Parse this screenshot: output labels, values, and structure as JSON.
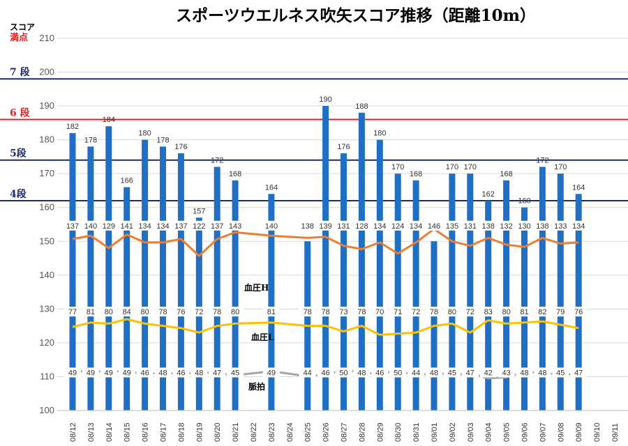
{
  "chart_data": {
    "type": "bar",
    "title": "スポーツウエルネス吹矢スコア推移（距離10m）",
    "ylabel": "スコア",
    "ylim": [
      100,
      210
    ],
    "yticks": [
      100,
      110,
      120,
      130,
      140,
      150,
      160,
      170,
      180,
      190,
      200,
      210
    ],
    "categories": [
      "08/12",
      "08/13",
      "08/14",
      "08/15",
      "08/16",
      "08/17",
      "08/18",
      "08/19",
      "08/20",
      "08/21",
      "08/22",
      "08/23",
      "08/24",
      "08/25",
      "08/26",
      "08/27",
      "08/28",
      "08/29",
      "08/30",
      "08/31",
      "09/01",
      "09/02",
      "09/03",
      "09/04",
      "09/05",
      "09/06",
      "09/07",
      "09/08",
      "09/09",
      "09/10",
      "09/11"
    ],
    "series": [
      {
        "kind": "bar",
        "color": "#1f6fc5",
        "values": [
          182,
          178,
          184,
          166,
          180,
          178,
          176,
          157,
          172,
          168,
          null,
          164,
          null,
          null,
          190,
          176,
          188,
          180,
          170,
          168,
          null,
          170,
          170,
          162,
          168,
          160,
          172,
          170,
          164,
          null,
          null
        ]
      },
      {
        "kind": "line",
        "name": "血圧H",
        "color": "#ed7d31",
        "values": [
          137,
          140,
          129,
          141,
          134,
          134,
          137,
          122,
          137,
          143,
          null,
          140,
          null,
          138,
          139,
          131,
          128,
          134,
          124,
          134,
          146,
          135,
          131,
          138,
          132,
          130,
          138,
          133,
          134,
          null,
          null
        ]
      },
      {
        "kind": "line",
        "name": "血圧L",
        "color": "#ffc000",
        "values": [
          77,
          81,
          80,
          84,
          80,
          78,
          76,
          72,
          78,
          80,
          null,
          81,
          null,
          78,
          78,
          73,
          78,
          70,
          71,
          72,
          78,
          80,
          72,
          83,
          80,
          81,
          82,
          79,
          76,
          null,
          null
        ]
      },
      {
        "kind": "line",
        "name": "脈拍",
        "color": "#a5a5a5",
        "values": [
          49,
          49,
          49,
          49,
          46,
          48,
          46,
          48,
          47,
          45,
          null,
          49,
          null,
          44,
          46,
          50,
          48,
          46,
          50,
          44,
          48,
          45,
          47,
          42,
          43,
          48,
          48,
          45,
          47,
          null,
          null
        ]
      }
    ],
    "flat_bars": [
      {
        "category": "08/25",
        "label": "138"
      },
      {
        "category": "09/01",
        "label": "146"
      }
    ],
    "reference_lines": [
      {
        "label": "7 段",
        "value": 198,
        "color": "#1a2a6c"
      },
      {
        "label": "6 段",
        "value": 186,
        "color": "#e02020"
      },
      {
        "label": "5段",
        "value": 174,
        "color": "#1a2a6c"
      },
      {
        "label": "4段",
        "value": 162,
        "color": "#1a2a6c"
      }
    ],
    "perfect_score_label": "満点",
    "grid": true,
    "legend": "none"
  }
}
